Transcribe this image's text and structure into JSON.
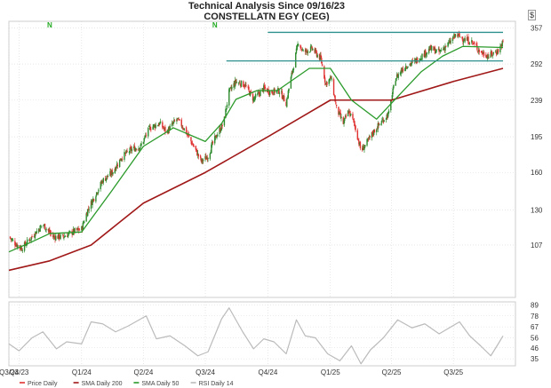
{
  "header": {
    "title": "Technical Analysis Since 09/16/23",
    "subtitle": "CONSTELLATN EGY (CEG)",
    "currency": "$"
  },
  "colors": {
    "up": "#2e8b2e",
    "down": "#e03030",
    "sma200": "#a01818",
    "sma50": "#2a9a2a",
    "rsi": "#bbbbbb",
    "resistance": "#2e8f8f",
    "grid": "#d8d8d8"
  },
  "chart_data": [
    {
      "type": "candlestick",
      "title": "",
      "price_axis": {
        "scale": "log",
        "ticks": [
          107,
          130,
          160,
          195,
          239,
          292,
          357
        ],
        "ylim": [
          80,
          370
        ]
      },
      "x_axis": {
        "type": "date",
        "range": [
          "2023-09-16",
          "2025-09-12"
        ],
        "ticks": [
          {
            "label": "Q3/23",
            "date": "2023-09-16"
          },
          {
            "label": "Q4/23",
            "date": "2023-10-01"
          },
          {
            "label": "Q1/24",
            "date": "2024-01-01"
          },
          {
            "label": "Q2/24",
            "date": "2024-04-01"
          },
          {
            "label": "Q3/24",
            "date": "2024-07-01"
          },
          {
            "label": "Q4/24",
            "date": "2024-10-01"
          },
          {
            "label": "Q1/25",
            "date": "2025-01-01"
          },
          {
            "label": "Q2/25",
            "date": "2025-04-01"
          },
          {
            "label": "Q3/25",
            "date": "2025-07-01"
          }
        ]
      },
      "grid": true,
      "markers": [
        {
          "label": "N",
          "date": "2023-11-15"
        },
        {
          "label": "N",
          "date": "2024-07-15"
        }
      ],
      "resistance_lines": [
        {
          "price": 348,
          "from": "2024-10-01",
          "to": "2025-09-12"
        },
        {
          "price": 297,
          "from": "2024-08-01",
          "to": "2025-09-12"
        }
      ],
      "price_anchors": [
        [
          "2023-09-16",
          112
        ],
        [
          "2023-09-25",
          108
        ],
        [
          "2023-10-05",
          105
        ],
        [
          "2023-10-20",
          112
        ],
        [
          "2023-11-05",
          120
        ],
        [
          "2023-11-20",
          112
        ],
        [
          "2023-12-05",
          112
        ],
        [
          "2023-12-18",
          115
        ],
        [
          "2024-01-01",
          117
        ],
        [
          "2024-01-10",
          130
        ],
        [
          "2024-01-20",
          140
        ],
        [
          "2024-02-01",
          153
        ],
        [
          "2024-02-15",
          160
        ],
        [
          "2024-03-01",
          175
        ],
        [
          "2024-03-15",
          182
        ],
        [
          "2024-03-28",
          185
        ],
        [
          "2024-04-10",
          205
        ],
        [
          "2024-04-25",
          210
        ],
        [
          "2024-05-05",
          200
        ],
        [
          "2024-05-20",
          215
        ],
        [
          "2024-05-30",
          205
        ],
        [
          "2024-06-10",
          190
        ],
        [
          "2024-06-25",
          170
        ],
        [
          "2024-07-05",
          175
        ],
        [
          "2024-07-12",
          188
        ],
        [
          "2024-07-20",
          200
        ],
        [
          "2024-07-28",
          210
        ],
        [
          "2024-08-05",
          250
        ],
        [
          "2024-08-15",
          265
        ],
        [
          "2024-08-28",
          260
        ],
        [
          "2024-09-10",
          240
        ],
        [
          "2024-09-25",
          255
        ],
        [
          "2024-10-05",
          250
        ],
        [
          "2024-10-18",
          252
        ],
        [
          "2024-10-28",
          235
        ],
        [
          "2024-11-08",
          290
        ],
        [
          "2024-11-15",
          330
        ],
        [
          "2024-11-22",
          312
        ],
        [
          "2024-12-05",
          318
        ],
        [
          "2024-12-18",
          300
        ],
        [
          "2024-12-25",
          262
        ],
        [
          "2025-01-02",
          270
        ],
        [
          "2025-01-10",
          228
        ],
        [
          "2025-01-20",
          210
        ],
        [
          "2025-01-28",
          225
        ],
        [
          "2025-02-05",
          210
        ],
        [
          "2025-02-15",
          180
        ],
        [
          "2025-02-25",
          190
        ],
        [
          "2025-03-05",
          200
        ],
        [
          "2025-03-15",
          210
        ],
        [
          "2025-03-28",
          222
        ],
        [
          "2025-04-07",
          270
        ],
        [
          "2025-04-20",
          288
        ],
        [
          "2025-05-05",
          296
        ],
        [
          "2025-05-15",
          305
        ],
        [
          "2025-05-28",
          318
        ],
        [
          "2025-06-10",
          312
        ],
        [
          "2025-06-25",
          328
        ],
        [
          "2025-07-05",
          344
        ],
        [
          "2025-07-15",
          336
        ],
        [
          "2025-07-28",
          330
        ],
        [
          "2025-08-10",
          312
        ],
        [
          "2025-08-22",
          305
        ],
        [
          "2025-09-05",
          315
        ],
        [
          "2025-09-12",
          330
        ]
      ],
      "series": [
        {
          "name": "Price Daily",
          "type": "candlestick"
        },
        {
          "name": "SMA Daily 200",
          "type": "line",
          "points": [
            [
              "2023-09-16",
              93
            ],
            [
              "2023-11-15",
              98
            ],
            [
              "2024-01-15",
              107
            ],
            [
              "2024-04-01",
              135
            ],
            [
              "2024-07-01",
              160
            ],
            [
              "2024-10-01",
              195
            ],
            [
              "2025-01-01",
              239
            ],
            [
              "2025-04-01",
              239
            ],
            [
              "2025-07-01",
              265
            ],
            [
              "2025-09-12",
              285
            ]
          ]
        },
        {
          "name": "SMA Daily 50",
          "type": "line",
          "points": [
            [
              "2023-09-16",
              103
            ],
            [
              "2023-10-15",
              108
            ],
            [
              "2023-11-15",
              114
            ],
            [
              "2024-01-01",
              115
            ],
            [
              "2024-02-15",
              145
            ],
            [
              "2024-04-01",
              185
            ],
            [
              "2024-05-15",
              205
            ],
            [
              "2024-07-01",
              190
            ],
            [
              "2024-07-25",
              210
            ],
            [
              "2024-08-15",
              240
            ],
            [
              "2024-09-15",
              252
            ],
            [
              "2024-10-15",
              252
            ],
            [
              "2024-12-01",
              285
            ],
            [
              "2025-01-01",
              285
            ],
            [
              "2025-02-01",
              239
            ],
            [
              "2025-03-10",
              215
            ],
            [
              "2025-04-01",
              235
            ],
            [
              "2025-05-15",
              280
            ],
            [
              "2025-06-15",
              305
            ],
            [
              "2025-07-15",
              322
            ],
            [
              "2025-09-12",
              320
            ]
          ]
        }
      ]
    },
    {
      "type": "line",
      "title": "",
      "x_axis": {
        "type": "date",
        "range": [
          "2023-09-16",
          "2025-09-12"
        ]
      },
      "y_axis": {
        "ticks": [
          35,
          46,
          56,
          67,
          78,
          89
        ],
        "ylim": [
          28,
          92
        ]
      },
      "grid": true,
      "series": [
        {
          "name": "RSI Daily 14",
          "points": [
            [
              "2023-09-16",
              50
            ],
            [
              "2023-10-01",
              43
            ],
            [
              "2023-10-20",
              56
            ],
            [
              "2023-11-05",
              62
            ],
            [
              "2023-11-25",
              45
            ],
            [
              "2023-12-10",
              52
            ],
            [
              "2024-01-01",
              50
            ],
            [
              "2024-01-15",
              72
            ],
            [
              "2024-02-01",
              70
            ],
            [
              "2024-02-20",
              62
            ],
            [
              "2024-03-10",
              68
            ],
            [
              "2024-04-05",
              78
            ],
            [
              "2024-04-20",
              55
            ],
            [
              "2024-05-10",
              58
            ],
            [
              "2024-06-01",
              48
            ],
            [
              "2024-06-20",
              38
            ],
            [
              "2024-07-05",
              42
            ],
            [
              "2024-07-25",
              75
            ],
            [
              "2024-08-05",
              86
            ],
            [
              "2024-08-25",
              62
            ],
            [
              "2024-09-10",
              45
            ],
            [
              "2024-09-25",
              55
            ],
            [
              "2024-10-10",
              52
            ],
            [
              "2024-10-28",
              40
            ],
            [
              "2024-11-12",
              74
            ],
            [
              "2024-11-25",
              58
            ],
            [
              "2024-12-10",
              56
            ],
            [
              "2024-12-28",
              40
            ],
            [
              "2025-01-15",
              33
            ],
            [
              "2025-02-01",
              48
            ],
            [
              "2025-02-15",
              30
            ],
            [
              "2025-03-01",
              44
            ],
            [
              "2025-03-20",
              56
            ],
            [
              "2025-04-10",
              74
            ],
            [
              "2025-05-01",
              66
            ],
            [
              "2025-05-20",
              70
            ],
            [
              "2025-06-10",
              60
            ],
            [
              "2025-06-25",
              66
            ],
            [
              "2025-07-10",
              72
            ],
            [
              "2025-07-25",
              58
            ],
            [
              "2025-08-10",
              48
            ],
            [
              "2025-08-25",
              38
            ],
            [
              "2025-09-05",
              50
            ],
            [
              "2025-09-12",
              58
            ]
          ]
        }
      ]
    }
  ],
  "legend": [
    {
      "label": "Price Daily",
      "color": "#e03030"
    },
    {
      "label": "SMA Daily 200",
      "color": "#a01818"
    },
    {
      "label": "SMA Daily 50",
      "color": "#2a9a2a"
    },
    {
      "label": "RSI Daily 14",
      "color": "#bbbbbb"
    }
  ]
}
